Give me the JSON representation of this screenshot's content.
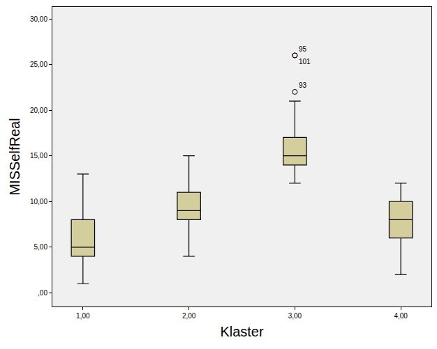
{
  "chart_data": {
    "type": "box",
    "x_label": "Klaster",
    "y_label": "MISSelfReal",
    "categories": [
      "1,00",
      "2,00",
      "3,00",
      "4,00"
    ],
    "min": [
      1,
      4,
      12,
      2
    ],
    "q1": [
      4,
      8,
      14,
      6
    ],
    "median": [
      5,
      9,
      15,
      8
    ],
    "q3": [
      8,
      11,
      17,
      10
    ],
    "max": [
      13,
      15,
      21,
      12
    ],
    "outliers": [
      {
        "category": "3,00",
        "value": 26,
        "label": "95"
      },
      {
        "category": "3,00",
        "value": 26,
        "label": "101"
      },
      {
        "category": "3,00",
        "value": 22,
        "label": "93"
      }
    ],
    "color": "#d3ce9b",
    "ylim": [
      -1.5,
      31.3
    ],
    "yticks": [
      {
        "value": 0,
        "label": ",00"
      },
      {
        "value": 5,
        "label": "5,00"
      },
      {
        "value": 10,
        "label": "10,00"
      },
      {
        "value": 15,
        "label": "15,00"
      },
      {
        "value": 20,
        "label": "20,00"
      },
      {
        "value": 25,
        "label": "25,00"
      },
      {
        "value": 30,
        "label": "30,00"
      }
    ],
    "grid": false
  }
}
